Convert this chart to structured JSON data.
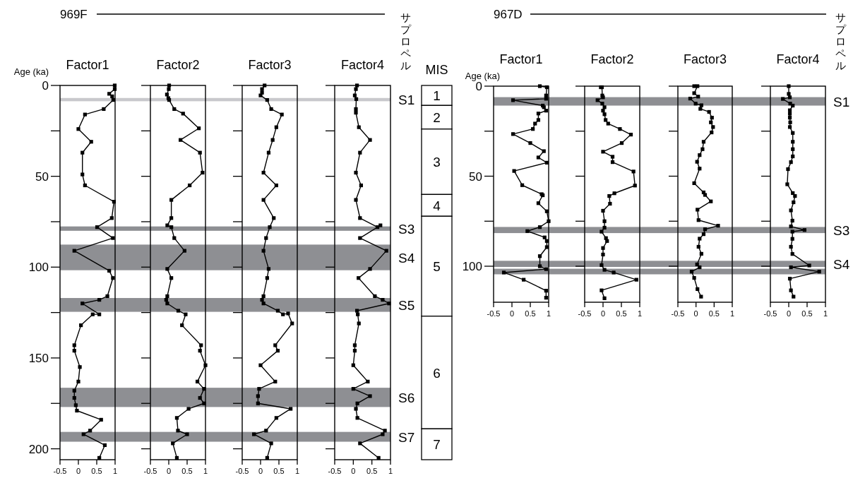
{
  "chart_data": [
    {
      "type": "line",
      "title": "Factor1",
      "ylabel": "Age (ka)",
      "annotations": [
        "969F"
      ],
      "marker": "square",
      "xlim": [
        -0.5,
        1
      ],
      "xticks": [
        -0.5,
        0,
        0.5,
        1
      ],
      "ylim": [
        206,
        0
      ],
      "yticks": [
        0,
        {
          "value": 25,
          "label": null
        },
        50,
        {
          "value": 75,
          "label": null
        },
        100,
        {
          "value": 125,
          "label": null
        },
        150,
        {
          "value": 175,
          "label": null
        },
        200
      ],
      "series": [
        {
          "color": "#000000",
          "x": [
            0.99,
            0.99,
            0.84,
            0.92,
            0.95,
            0.69,
            0.18,
            0.0,
            0.35,
            0.11,
            0.11,
            0.18,
            0.97,
            0.91,
            0.51,
            0.94,
            -0.11,
            0.84,
            0.94,
            0.79,
            0.57,
            0.11,
            0.57,
            0.39,
            0.07,
            -0.11,
            -0.11,
            0.04,
            0.0,
            -0.11,
            -0.11,
            -0.07,
            -0.04,
            0.62,
            0.32,
            0.14,
            0.72,
            0.57
          ],
          "values": [
            0,
            2,
            4.6,
            6,
            8,
            13,
            16,
            24,
            31,
            37,
            49,
            55,
            64,
            73,
            78,
            84,
            91,
            102,
            106,
            116,
            118,
            120,
            126,
            126,
            132,
            143,
            146,
            155,
            163,
            168,
            172,
            176,
            179,
            184,
            190,
            192,
            198,
            205
          ]
        }
      ],
      "bands": [
        {
          "axis": "y",
          "from": 6.9,
          "to": 8.7,
          "color": "#c8c8cc",
          "label": null
        },
        {
          "axis": "y",
          "from": 77.6,
          "to": 80,
          "color": "#8e8f93",
          "label": null
        },
        {
          "axis": "y",
          "from": 87.6,
          "to": 101.7,
          "color": "#8e8f93",
          "label": null
        },
        {
          "axis": "y",
          "from": 117,
          "to": 124.6,
          "color": "#8e8f93",
          "label": null
        },
        {
          "axis": "y",
          "from": 166.4,
          "to": 177,
          "color": "#8e8f93",
          "label": null
        },
        {
          "axis": "y",
          "from": 190.7,
          "to": 196.1,
          "color": "#8e8f93",
          "label": null
        }
      ]
    },
    {
      "type": "line",
      "title": "Factor2",
      "tick_labels": "x",
      "marker": "square",
      "xlim": [
        -0.5,
        1
      ],
      "xticks": [
        -0.5,
        0,
        0.5,
        1
      ],
      "ylim": [
        206,
        0
      ],
      "yticks": [
        0,
        {
          "value": 25,
          "label": null
        },
        50,
        {
          "value": 75,
          "label": null
        },
        100,
        {
          "value": 125,
          "label": null
        },
        150,
        {
          "value": 175,
          "label": null
        },
        200
      ],
      "series": [
        {
          "color": "#000000",
          "x": [
            0.01,
            0.0,
            -0.05,
            -0.01,
            0.01,
            0.15,
            0.39,
            0.82,
            0.32,
            0.85,
            0.92,
            0.57,
            0.07,
            0.07,
            -0.04,
            0.07,
            0.15,
            0.43,
            -0.04,
            0.07,
            -0.04,
            -0.07,
            -0.04,
            0.26,
            0.46,
            0.36,
            0.88,
            0.85,
            1.0,
            0.78,
            0.96,
            0.85,
            0.96,
            0.54,
            0.22,
            0.25,
            0.5,
            0.11,
            0.22
          ],
          "values": [
            0,
            2,
            5,
            7,
            8,
            13,
            15.5,
            23.6,
            30,
            37,
            48,
            55,
            63,
            73,
            77,
            78,
            84,
            91,
            101,
            106,
            116,
            118,
            120,
            124,
            126,
            132,
            143,
            146,
            154,
            163,
            167,
            172,
            175,
            178,
            183,
            190,
            192,
            197,
            205
          ]
        }
      ],
      "bands": [
        {
          "axis": "y",
          "from": 6.9,
          "to": 8.7,
          "color": "#c8c8cc",
          "label": null
        },
        {
          "axis": "y",
          "from": 77.6,
          "to": 80,
          "color": "#8e8f93",
          "label": null
        },
        {
          "axis": "y",
          "from": 87.6,
          "to": 101.7,
          "color": "#8e8f93",
          "label": null
        },
        {
          "axis": "y",
          "from": 117,
          "to": 124.6,
          "color": "#8e8f93",
          "label": null
        },
        {
          "axis": "y",
          "from": 166.4,
          "to": 177,
          "color": "#8e8f93",
          "label": null
        },
        {
          "axis": "y",
          "from": 190.7,
          "to": 196.1,
          "color": "#8e8f93",
          "label": null
        }
      ]
    },
    {
      "type": "line",
      "title": "Factor3",
      "tick_labels": "x",
      "marker": "square",
      "xlim": [
        -0.5,
        1
      ],
      "xticks": [
        -0.5,
        0,
        0.5,
        1
      ],
      "ylim": [
        206,
        0
      ],
      "yticks": [
        0,
        {
          "value": 25,
          "label": null
        },
        50,
        {
          "value": 75,
          "label": null
        },
        100,
        {
          "value": 125,
          "label": null
        },
        150,
        {
          "value": 175,
          "label": null
        },
        200
      ],
      "series": [
        {
          "color": "#000000",
          "x": [
            0.11,
            0.04,
            0.04,
            0.0,
            0.18,
            0.29,
            0.58,
            0.43,
            0.33,
            0.22,
            0.08,
            0.43,
            0.08,
            0.36,
            0.25,
            0.15,
            0.08,
            0.22,
            0.18,
            0.08,
            0.04,
            0.08,
            0.47,
            0.61,
            0.75,
            0.86,
            0.4,
            0.47,
            0.0,
            0.4,
            -0.04,
            -0.07,
            -0.07,
            0.82,
            0.43,
            0.15,
            -0.18,
            0.29,
            0.18
          ],
          "values": [
            0,
            2,
            4,
            5.5,
            8,
            13,
            16,
            23,
            30,
            37,
            48,
            55,
            63,
            73,
            78,
            84,
            91,
            101,
            106,
            116,
            118,
            120,
            124,
            126,
            125.5,
            131,
            143,
            146,
            154,
            163,
            167,
            171,
            175,
            178,
            183,
            190,
            192,
            197,
            205
          ]
        }
      ],
      "bands": [
        {
          "axis": "y",
          "from": 6.9,
          "to": 8.7,
          "color": "#c8c8cc",
          "label": null
        },
        {
          "axis": "y",
          "from": 77.6,
          "to": 80,
          "color": "#8e8f93",
          "label": null
        },
        {
          "axis": "y",
          "from": 87.6,
          "to": 101.7,
          "color": "#8e8f93",
          "label": null
        },
        {
          "axis": "y",
          "from": 117,
          "to": 124.6,
          "color": "#8e8f93",
          "label": null
        },
        {
          "axis": "y",
          "from": 166.4,
          "to": 177,
          "color": "#8e8f93",
          "label": null
        },
        {
          "axis": "y",
          "from": 190.7,
          "to": 196.1,
          "color": "#8e8f93",
          "label": null
        }
      ]
    },
    {
      "type": "line",
      "title": "Factor4",
      "tick_labels": "x",
      "annotations": [
        "サプロペル"
      ],
      "marker": "square",
      "xlim": [
        -0.5,
        1
      ],
      "xticks": [
        -0.5,
        0,
        0.5,
        1
      ],
      "ylim": [
        206,
        0
      ],
      "yticks": [
        0,
        {
          "value": 25,
          "label": null
        },
        50,
        {
          "value": 75,
          "label": null
        },
        100,
        {
          "value": 125,
          "label": null
        },
        150,
        {
          "value": 175,
          "label": null
        },
        200
      ],
      "series": [
        {
          "color": "#000000",
          "x": [
            0.1,
            0.07,
            0.04,
            0.08,
            0.07,
            0.07,
            0.15,
            0.45,
            0.18,
            0.07,
            0.21,
            0.07,
            0.18,
            0.65,
            0.73,
            0.18,
            0.89,
            0.45,
            0.14,
            0.58,
            0.79,
            0.96,
            0.1,
            0.12,
            0.15,
            0.04,
            0.04,
            0.0,
            0.39,
            0.0,
            0.45,
            0.11,
            0.07,
            0.11,
            0.85,
            0.79,
            0.18,
            0.68
          ],
          "values": [
            0,
            2,
            5.5,
            7.5,
            13,
            15,
            23,
            30,
            37,
            48,
            55,
            63,
            73,
            78,
            77,
            84,
            91,
            101,
            106,
            116,
            118,
            120,
            124,
            126,
            131,
            143,
            146,
            154,
            163,
            167,
            171,
            175,
            178,
            183,
            190,
            192,
            197,
            205
          ]
        }
      ],
      "bands": [
        {
          "axis": "y",
          "from": 6.9,
          "to": 8.7,
          "color": "#c8c8cc",
          "label": "S1"
        },
        {
          "axis": "y",
          "from": 77.6,
          "to": 80,
          "color": "#8e8f93",
          "label": "S3"
        },
        {
          "axis": "y",
          "from": 87.6,
          "to": 101.7,
          "color": "#8e8f93",
          "label": "S4"
        },
        {
          "axis": "y",
          "from": 117,
          "to": 124.6,
          "color": "#8e8f93",
          "label": "S5"
        },
        {
          "axis": "y",
          "from": 166.4,
          "to": 177,
          "color": "#8e8f93",
          "label": "S6"
        },
        {
          "axis": "y",
          "from": 190.7,
          "to": 196.1,
          "color": "#8e8f93",
          "label": "S7"
        }
      ]
    },
    {
      "type": "bar",
      "title": "MIS",
      "stacked": true,
      "categories": [
        null
      ],
      "ylim": [
        206,
        0
      ],
      "tick_labels": false,
      "series": [
        {
          "name": "1",
          "color": "#ffffff",
          "values": [
            11
          ]
        },
        {
          "name": "2",
          "color": "#ffffff",
          "values": [
            13
          ]
        },
        {
          "name": "3",
          "color": "#ffffff",
          "values": [
            36
          ]
        },
        {
          "name": "4",
          "color": "#ffffff",
          "values": [
            12
          ]
        },
        {
          "name": "5",
          "color": "#ffffff",
          "values": [
            55
          ]
        },
        {
          "name": "6",
          "color": "#ffffff",
          "values": [
            62
          ]
        },
        {
          "name": "7",
          "color": "#ffffff",
          "values": [
            17
          ]
        }
      ]
    },
    {
      "type": "line",
      "title": "Factor1",
      "ylabel": "Age (ka)",
      "annotations": [
        "967D"
      ],
      "marker": "square",
      "xlim": [
        -0.5,
        1
      ],
      "xticks": [
        -0.5,
        0,
        0.5,
        1
      ],
      "ylim": [
        120,
        0
      ],
      "yticks": [
        0,
        {
          "value": 25,
          "label": null
        },
        50,
        {
          "value": 75,
          "label": null
        },
        100
      ],
      "series": [
        {
          "color": "#000000",
          "x": [
            0.76,
            0.95,
            0.93,
            0.93,
            0.03,
            0.84,
            0.87,
            0.93,
            0.72,
            0.72,
            0.63,
            0.57,
            0.03,
            0.5,
            0.87,
            0.72,
            0.95,
            0.06,
            0.28,
            0.81,
            0.84,
            0.72,
            0.95,
            1.0,
            0.76,
            0.42,
            0.89,
            0.95,
            0.95,
            0.76,
            0.76,
            0.93,
            -0.22,
            0.32,
            0.93,
            0.93
          ],
          "values": [
            0,
            0.6,
            5.2,
            7,
            7.8,
            10.8,
            11.7,
            13.6,
            15.2,
            18.8,
            20.8,
            23.8,
            26.6,
            31.6,
            36.1,
            39.6,
            42.5,
            47.1,
            55,
            60,
            60.6,
            65,
            69.5,
            75,
            78.3,
            80.5,
            84,
            86,
            89.4,
            94.4,
            100,
            101.6,
            103.5,
            107.5,
            113.6,
            117.5
          ]
        }
      ],
      "bands": [
        {
          "axis": "y",
          "from": 6.1,
          "to": 10.8,
          "color": "#8e8f93",
          "label": null
        },
        {
          "axis": "y",
          "from": 78.2,
          "to": 81.6,
          "color": "#8e8f93",
          "label": null
        },
        {
          "axis": "y",
          "from": 97,
          "to": 100.4,
          "color": "#8e8f93",
          "label": null
        },
        {
          "axis": "y",
          "from": 101.4,
          "to": 104.5,
          "color": "#8e8f93",
          "label": null
        }
      ]
    },
    {
      "type": "line",
      "title": "Factor2",
      "tick_labels": "x",
      "marker": "square",
      "xlim": [
        -0.5,
        1
      ],
      "xticks": [
        -0.5,
        0,
        0.5,
        1
      ],
      "ylim": [
        120,
        0
      ],
      "yticks": [
        0,
        {
          "value": 25,
          "label": null
        },
        50,
        {
          "value": 75,
          "label": null
        },
        100
      ],
      "series": [
        {
          "color": "#000000",
          "x": [
            -0.06,
            -0.03,
            -0.02,
            0.0,
            -0.15,
            -0.02,
            0.04,
            0.0,
            0.04,
            0.07,
            0.14,
            0.46,
            0.76,
            0.51,
            0.0,
            0.26,
            0.26,
            0.83,
            0.87,
            0.31,
            0.17,
            0.19,
            0.0,
            0.04,
            0.04,
            -0.04,
            0.08,
            0.11,
            0.0,
            0.0,
            -0.04,
            0.04,
            0.29,
            0.91,
            -0.04,
            0.04
          ],
          "values": [
            0.6,
            0.6,
            5.2,
            6.2,
            7.8,
            9.7,
            11.7,
            13.6,
            15.6,
            18.8,
            20.8,
            23.8,
            26.9,
            31.6,
            36.4,
            39.2,
            42.2,
            47.4,
            55.2,
            59.5,
            61,
            65.3,
            69.2,
            75,
            78.6,
            80.8,
            84.4,
            86,
            89.9,
            93.5,
            99.4,
            102,
            103.5,
            107.5,
            113.4,
            117.8
          ]
        }
      ],
      "bands": [
        {
          "axis": "y",
          "from": 6.1,
          "to": 10.8,
          "color": "#8e8f93",
          "label": null
        },
        {
          "axis": "y",
          "from": 78.2,
          "to": 81.6,
          "color": "#8e8f93",
          "label": null
        },
        {
          "axis": "y",
          "from": 97,
          "to": 100.4,
          "color": "#8e8f93",
          "label": null
        },
        {
          "axis": "y",
          "from": 101.4,
          "to": 104.5,
          "color": "#8e8f93",
          "label": null
        }
      ]
    },
    {
      "type": "line",
      "title": "Factor3",
      "tick_labels": "x",
      "marker": "square",
      "xlim": [
        -0.5,
        1
      ],
      "xticks": [
        -0.5,
        0,
        0.5,
        1
      ],
      "ylim": [
        120,
        0
      ],
      "yticks": [
        0,
        {
          "value": 25,
          "label": null
        },
        50,
        {
          "value": 75,
          "label": null
        },
        100
      ],
      "series": [
        {
          "color": "#000000",
          "x": [
            -0.05,
            0.04,
            -0.05,
            0.06,
            -0.16,
            -0.01,
            0.15,
            0.12,
            0.36,
            0.44,
            0.41,
            0.47,
            0.43,
            0.21,
            0.18,
            0.1,
            0.03,
            0.1,
            -0.05,
            0.21,
            0.25,
            0.41,
            0.04,
            0.07,
            0.61,
            0.25,
            0.21,
            0.1,
            0.07,
            0.15,
            0.03,
            0.1,
            -0.12,
            -0.05,
            0.04,
            0.14
          ],
          "values": [
            0,
            0,
            3.9,
            5.8,
            6.9,
            9.7,
            10.6,
            12.6,
            14.3,
            17.5,
            20.1,
            22.7,
            25.7,
            30.9,
            35,
            38.3,
            42,
            45.8,
            53.9,
            59,
            60.4,
            64,
            68.6,
            74.4,
            77.5,
            79.5,
            82.2,
            84.7,
            89.2,
            93.1,
            99,
            100.6,
            103,
            106.5,
            112.7,
            116.9
          ]
        }
      ],
      "bands": [
        {
          "axis": "y",
          "from": 6.1,
          "to": 10.8,
          "color": "#8e8f93",
          "label": null
        },
        {
          "axis": "y",
          "from": 78.2,
          "to": 81.6,
          "color": "#8e8f93",
          "label": null
        },
        {
          "axis": "y",
          "from": 97,
          "to": 100.4,
          "color": "#8e8f93",
          "label": null
        },
        {
          "axis": "y",
          "from": 101.4,
          "to": 104.5,
          "color": "#8e8f93",
          "label": null
        }
      ]
    },
    {
      "type": "line",
      "title": "Factor4",
      "tick_labels": "x",
      "annotations": [
        "サプロペル"
      ],
      "marker": "square",
      "xlim": [
        -0.5,
        1
      ],
      "xticks": [
        -0.5,
        0,
        0.5,
        1
      ],
      "ylim": [
        120,
        0
      ],
      "yticks": [
        0,
        {
          "value": 25,
          "label": null
        },
        50,
        {
          "value": 75,
          "label": null
        },
        100
      ],
      "series": [
        {
          "color": "#000000",
          "x": [
            0.0,
            0.0,
            0.03,
            -0.16,
            0.04,
            0.11,
            0.03,
            0.03,
            0.03,
            0.04,
            0.03,
            0.11,
            0.11,
            0.11,
            0.11,
            0.06,
            -0.02,
            -0.04,
            0.11,
            0.17,
            0.13,
            0.06,
            0.1,
            0.06,
            0.43,
            0.1,
            0.1,
            0.06,
            0.1,
            0.56,
            0.06,
            0.83,
            0.03,
            0.06,
            0.13
          ],
          "values": [
            0,
            4.3,
            6.2,
            7.1,
            9.7,
            10.8,
            13.4,
            15.3,
            17.5,
            20.1,
            22.7,
            26,
            30.9,
            35,
            39,
            42.2,
            46.1,
            54.5,
            59.4,
            61,
            64.5,
            69,
            74.7,
            77.9,
            79.9,
            80.8,
            84.8,
            89.2,
            93.2,
            99.6,
            100.6,
            103,
            106.9,
            113.4,
            116.9
          ]
        }
      ],
      "bands": [
        {
          "axis": "y",
          "from": 6.1,
          "to": 10.8,
          "color": "#8e8f93",
          "label": "S1"
        },
        {
          "axis": "y",
          "from": 78.2,
          "to": 81.6,
          "color": "#8e8f93",
          "label": "S3"
        },
        {
          "axis": "y",
          "from": 97,
          "to": 100.4,
          "color": "#8e8f93",
          "label": "S4"
        },
        {
          "axis": "y",
          "from": 101.4,
          "to": 104.5,
          "color": "#8e8f93",
          "label": null
        }
      ]
    }
  ]
}
